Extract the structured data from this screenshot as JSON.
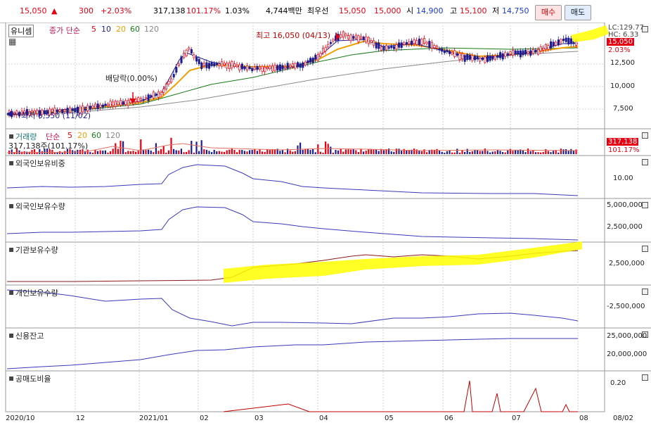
{
  "toolbar": {
    "price": "15,050",
    "change_arrow": "▲",
    "change": "300",
    "change_pct": "+2.03%",
    "volume": "317,138",
    "volume_ratio": "101.17%",
    "turnover_pct": "1.03%",
    "amount": "4,744백만",
    "best_label": "최우선",
    "best_bid": "15,050",
    "best_ask": "15,000",
    "open_label": "시",
    "open": "14,900",
    "high_label": "고",
    "high": "15,100",
    "low_label": "저",
    "low": "14,750",
    "buy_label": "매수",
    "sell_label": "매도"
  },
  "price_panel": {
    "stock_name": "유니셈",
    "ma_label": "종가 단순",
    "ma_periods": [
      "5",
      "10",
      "20",
      "60",
      "120"
    ],
    "ma_colors": [
      "#e60012",
      "#1d1d8f",
      "#f0a000",
      "#1a7a1a",
      "#888888"
    ],
    "high_note": "최고 16,050 (04/13)",
    "low_note": "최저 6,550 (11/02)",
    "dividend_note": "배당락(0.00%)",
    "lc_label": "LC:129.77",
    "hc_label": "HC: 6.33",
    "current_badge": "15,050",
    "current_pct": "2.03%",
    "y_ticks": [
      "12,500",
      "10,000",
      "7,500"
    ]
  },
  "volume_panel": {
    "title": "거래량",
    "ma_label": "단순",
    "ma_periods": [
      "5",
      "20",
      "60",
      "120"
    ],
    "value_note": "317,138주(101.17%)",
    "badge_value": "317,138",
    "badge_pct": "101.17%"
  },
  "foreign_ratio_panel": {
    "title": "외국인보유비중",
    "y_ticks": [
      "10.00"
    ]
  },
  "foreign_qty_panel": {
    "title": "외국인보유수량",
    "y_ticks": [
      "5,000,000",
      "2,500,000"
    ]
  },
  "inst_qty_panel": {
    "title": "기관보유수량",
    "y_ticks": [
      "2,500,000"
    ]
  },
  "indiv_qty_panel": {
    "title": "개인보유수량",
    "y_ticks": [
      "-2,500,000"
    ]
  },
  "credit_panel": {
    "title": "신용잔고",
    "y_ticks": [
      "25,000,000",
      "20,000,000"
    ]
  },
  "short_panel": {
    "title": "공매도비율",
    "y_ticks": [
      "0.20"
    ]
  },
  "x_axis": {
    "labels": [
      "2020/10",
      "12",
      "2021/01",
      "02",
      "03",
      "04",
      "05",
      "06",
      "07",
      "08",
      "08/02"
    ]
  }
}
